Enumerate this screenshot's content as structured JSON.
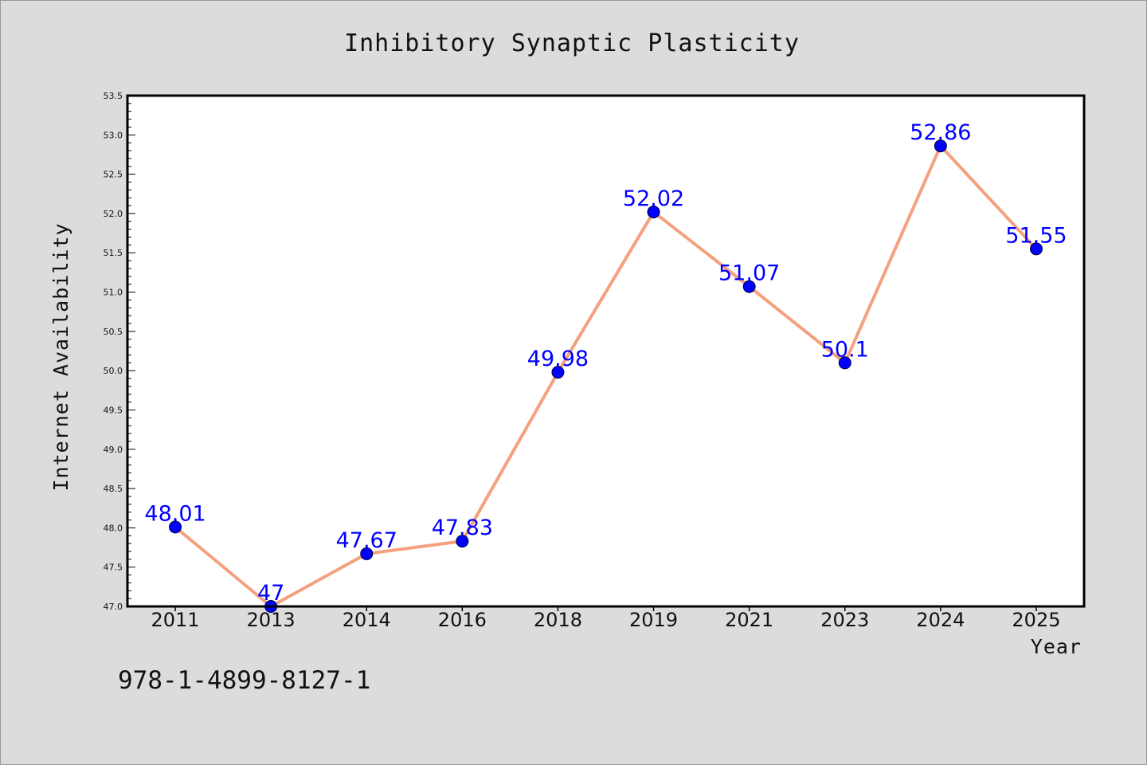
{
  "chart_data": {
    "type": "line",
    "title": "Inhibitory Synaptic Plasticity",
    "xlabel": "Year",
    "ylabel": "Internet Availability",
    "categories": [
      "2011",
      "2013",
      "2014",
      "2016",
      "2018",
      "2019",
      "2021",
      "2023",
      "2024",
      "2025"
    ],
    "values": [
      48.01,
      47,
      47.67,
      47.83,
      49.98,
      52.02,
      51.07,
      50.1,
      52.86,
      51.55
    ],
    "data_labels": [
      "48.01",
      "47",
      "47.67",
      "47.83",
      "49.98",
      "52.02",
      "51.07",
      "50.1",
      "52.86",
      "51.55"
    ],
    "ylim": [
      47.0,
      53.5
    ],
    "yticks": [
      "47.0",
      "47.5",
      "48.0",
      "48.5",
      "49.0",
      "49.5",
      "50.0",
      "50.5",
      "51.0",
      "51.5",
      "52.0",
      "52.5",
      "53.0",
      "53.5"
    ],
    "grid": false,
    "line_color": "#f5a07e",
    "marker_color": "#0000ff",
    "label_color": "#0000ff",
    "background_color": "#dcdcdc",
    "plot_background": "#ffffff"
  },
  "footer": {
    "isbn": "978-1-4899-8127-1"
  }
}
